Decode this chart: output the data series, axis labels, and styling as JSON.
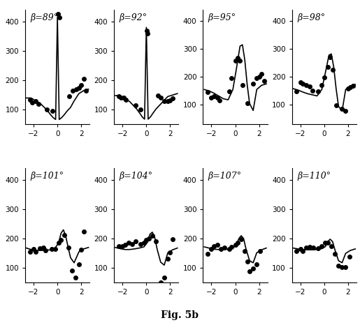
{
  "title": "Fig. 5b",
  "panels": [
    {
      "label": "β=89°",
      "ylim": [
        50,
        440
      ],
      "yticks": [
        100,
        200,
        300,
        400
      ],
      "curve_x": [
        -2.6,
        -2.2,
        -1.8,
        -1.4,
        -1.1,
        -0.8,
        -0.55,
        -0.35,
        -0.15,
        0.0,
        0.15,
        0.35,
        0.55,
        0.8,
        1.1,
        1.4,
        1.8,
        2.2,
        2.6
      ],
      "curve_y": [
        140,
        140,
        130,
        120,
        108,
        95,
        82,
        73,
        67,
        415,
        67,
        73,
        82,
        95,
        108,
        130,
        155,
        165,
        170
      ],
      "dots_x": [
        -2.3,
        -2.1,
        -1.8,
        -1.6,
        -0.9,
        -0.4,
        0.05,
        0.15,
        1.0,
        1.3,
        1.6,
        1.8,
        2.0,
        2.2,
        2.4
      ],
      "dots_y": [
        135,
        125,
        130,
        120,
        100,
        95,
        425,
        415,
        145,
        165,
        170,
        175,
        185,
        205,
        165
      ]
    },
    {
      "label": "β=92°",
      "ylim": [
        50,
        440
      ],
      "yticks": [
        100,
        200,
        300,
        400
      ],
      "curve_x": [
        -2.6,
        -2.2,
        -1.8,
        -1.4,
        -1.1,
        -0.8,
        -0.55,
        -0.35,
        -0.15,
        0.0,
        0.15,
        0.35,
        0.55,
        0.8,
        1.1,
        1.4,
        1.8,
        2.2,
        2.6
      ],
      "curve_y": [
        148,
        148,
        138,
        128,
        115,
        102,
        88,
        76,
        68,
        380,
        68,
        76,
        88,
        102,
        115,
        128,
        145,
        150,
        155
      ],
      "dots_x": [
        -2.3,
        -2.1,
        -1.9,
        -1.7,
        -0.9,
        -0.5,
        0.05,
        0.12,
        1.0,
        1.2,
        1.5,
        1.8,
        2.0,
        2.2
      ],
      "dots_y": [
        145,
        140,
        140,
        135,
        115,
        100,
        370,
        360,
        148,
        140,
        130,
        130,
        132,
        138
      ]
    },
    {
      "label": "β=95°",
      "ylim": [
        30,
        440
      ],
      "yticks": [
        100,
        200,
        300,
        400
      ],
      "curve_x": [
        -2.6,
        -2.2,
        -1.8,
        -1.4,
        -1.0,
        -0.6,
        -0.2,
        0.1,
        0.4,
        0.6,
        0.8,
        1.0,
        1.2,
        1.5,
        1.8,
        2.2,
        2.6
      ],
      "curve_y": [
        155,
        150,
        142,
        132,
        122,
        118,
        155,
        230,
        310,
        315,
        260,
        172,
        105,
        80,
        155,
        170,
        175
      ],
      "dots_x": [
        -2.3,
        -2.0,
        -1.8,
        -1.5,
        -1.3,
        -0.5,
        -0.3,
        0.0,
        0.2,
        0.4,
        0.6,
        1.0,
        1.5,
        1.8,
        2.0,
        2.2,
        2.4
      ],
      "dots_y": [
        145,
        125,
        130,
        125,
        115,
        148,
        195,
        258,
        268,
        258,
        170,
        105,
        175,
        195,
        200,
        210,
        185
      ]
    },
    {
      "label": "β=98°",
      "ylim": [
        30,
        440
      ],
      "yticks": [
        100,
        200,
        300,
        400
      ],
      "curve_x": [
        -2.6,
        -2.2,
        -1.8,
        -1.4,
        -1.0,
        -0.6,
        -0.2,
        0.1,
        0.4,
        0.6,
        0.8,
        1.0,
        1.2,
        1.5,
        1.8,
        2.2,
        2.6
      ],
      "curve_y": [
        158,
        153,
        146,
        140,
        136,
        132,
        155,
        215,
        278,
        282,
        235,
        158,
        95,
        78,
        155,
        168,
        173
      ],
      "dots_x": [
        -2.3,
        -2.0,
        -1.8,
        -1.5,
        -1.2,
        -1.0,
        -0.5,
        -0.2,
        0.0,
        0.3,
        0.5,
        0.7,
        1.0,
        1.5,
        1.8,
        2.0,
        2.2,
        2.4
      ],
      "dots_y": [
        148,
        180,
        175,
        170,
        165,
        150,
        148,
        170,
        198,
        235,
        270,
        225,
        98,
        85,
        78,
        158,
        162,
        168
      ]
    },
    {
      "label": "β=101°",
      "ylim": [
        50,
        440
      ],
      "yticks": [
        100,
        200,
        300,
        400
      ],
      "curve_x": [
        -2.6,
        -2.2,
        -1.8,
        -1.4,
        -1.0,
        -0.6,
        -0.2,
        0.1,
        0.3,
        0.5,
        0.7,
        0.9,
        1.1,
        1.4,
        1.8,
        2.2,
        2.6
      ],
      "curve_y": [
        168,
        163,
        160,
        160,
        160,
        162,
        168,
        185,
        218,
        230,
        208,
        170,
        135,
        118,
        155,
        165,
        170
      ],
      "dots_x": [
        -2.3,
        -2.0,
        -1.8,
        -1.5,
        -1.2,
        -1.0,
        -0.5,
        -0.2,
        0.1,
        0.3,
        0.6,
        0.9,
        1.2,
        1.5,
        1.8,
        2.0,
        2.2
      ],
      "dots_y": [
        155,
        165,
        155,
        168,
        170,
        160,
        165,
        165,
        185,
        195,
        212,
        170,
        92,
        68,
        112,
        162,
        225
      ]
    },
    {
      "label": "β=104°",
      "ylim": [
        50,
        440
      ],
      "yticks": [
        100,
        200,
        300,
        400
      ],
      "curve_x": [
        -2.6,
        -2.2,
        -1.8,
        -1.4,
        -1.0,
        -0.6,
        -0.2,
        0.1,
        0.3,
        0.5,
        0.7,
        0.9,
        1.2,
        1.5,
        1.8,
        2.2,
        2.6
      ],
      "curve_y": [
        170,
        166,
        163,
        163,
        165,
        168,
        172,
        188,
        215,
        222,
        205,
        165,
        120,
        110,
        152,
        162,
        168
      ],
      "dots_x": [
        -2.3,
        -2.0,
        -1.8,
        -1.5,
        -1.2,
        -0.9,
        -0.5,
        -0.2,
        0.0,
        0.2,
        0.5,
        0.8,
        1.2,
        1.5,
        1.8,
        2.0,
        2.2
      ],
      "dots_y": [
        175,
        175,
        178,
        185,
        182,
        190,
        182,
        185,
        195,
        200,
        210,
        192,
        52,
        68,
        132,
        152,
        198
      ]
    },
    {
      "label": "β=107°",
      "ylim": [
        50,
        440
      ],
      "yticks": [
        100,
        200,
        300,
        400
      ],
      "curve_x": [
        -2.6,
        -2.2,
        -1.8,
        -1.4,
        -1.0,
        -0.6,
        -0.2,
        0.1,
        0.3,
        0.5,
        0.7,
        0.9,
        1.2,
        1.5,
        1.8,
        2.2,
        2.6
      ],
      "curve_y": [
        172,
        168,
        164,
        163,
        163,
        164,
        168,
        178,
        200,
        210,
        200,
        165,
        125,
        118,
        152,
        162,
        168
      ],
      "dots_x": [
        -2.3,
        -2.0,
        -1.8,
        -1.5,
        -1.2,
        -0.9,
        -0.5,
        -0.3,
        0.0,
        0.2,
        0.5,
        0.8,
        1.0,
        1.2,
        1.5,
        1.8,
        2.1
      ],
      "dots_y": [
        148,
        165,
        175,
        178,
        165,
        170,
        165,
        172,
        178,
        185,
        198,
        158,
        122,
        88,
        98,
        112,
        158
      ]
    },
    {
      "label": "β=110°",
      "ylim": [
        50,
        440
      ],
      "yticks": [
        100,
        200,
        300,
        400
      ],
      "curve_x": [
        -2.6,
        -2.2,
        -1.8,
        -1.4,
        -1.0,
        -0.6,
        -0.2,
        0.1,
        0.3,
        0.5,
        0.7,
        0.9,
        1.2,
        1.5,
        1.8,
        2.2,
        2.6
      ],
      "curve_y": [
        168,
        165,
        163,
        162,
        162,
        163,
        166,
        173,
        190,
        198,
        190,
        162,
        125,
        118,
        150,
        160,
        165
      ],
      "dots_x": [
        -2.3,
        -2.0,
        -1.8,
        -1.5,
        -1.2,
        -0.9,
        -0.5,
        -0.2,
        0.1,
        0.3,
        0.6,
        0.9,
        1.2,
        1.5,
        1.8,
        2.1
      ],
      "dots_y": [
        158,
        165,
        158,
        170,
        172,
        170,
        168,
        175,
        185,
        185,
        175,
        148,
        108,
        102,
        102,
        138
      ]
    }
  ],
  "xlim": [
    -2.7,
    2.7
  ],
  "xticks": [
    -2,
    0,
    2
  ],
  "dot_color": "black",
  "dot_size": 16,
  "line_color": "black",
  "line_width": 1.2,
  "label_fontsize": 9,
  "tick_fontsize": 7.5
}
